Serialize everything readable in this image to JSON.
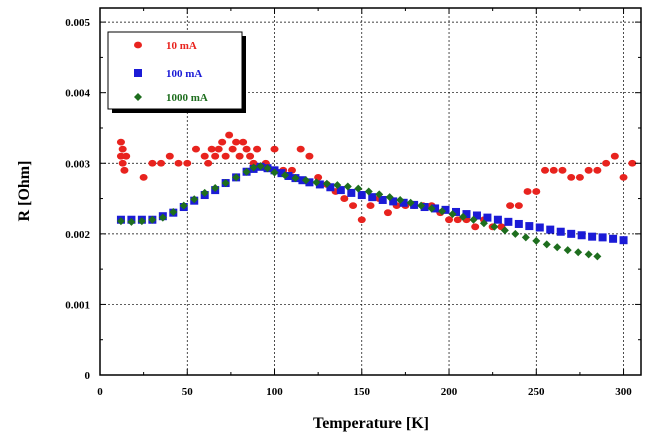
{
  "chart_data": {
    "type": "scatter",
    "xlabel": "Temperature [K]",
    "ylabel": "R [Ohm]",
    "xlim": [
      0,
      310
    ],
    "ylim": [
      0,
      0.0052
    ],
    "x_ticks": [
      0,
      50,
      100,
      150,
      200,
      250,
      300
    ],
    "y_ticks": [
      0,
      0.001,
      0.002,
      0.003,
      0.004,
      0.005
    ],
    "x_tick_labels": [
      "0",
      "50",
      "100",
      "150",
      "200",
      "250",
      "300"
    ],
    "y_tick_labels": [
      "0",
      "0.001",
      "0.002",
      "0.003",
      "0.004",
      "0.005"
    ],
    "grid": "dotted",
    "legend_position": "top-left",
    "series": [
      {
        "name": "10 mA",
        "color": "#e8231e",
        "marker": "circle",
        "x": [
          12,
          12,
          13,
          13,
          14,
          15,
          25,
          30,
          35,
          40,
          45,
          50,
          55,
          60,
          62,
          64,
          66,
          68,
          70,
          72,
          74,
          76,
          78,
          80,
          82,
          84,
          86,
          88,
          90,
          95,
          100,
          105,
          110,
          115,
          120,
          125,
          130,
          135,
          140,
          145,
          150,
          155,
          160,
          165,
          170,
          175,
          180,
          185,
          190,
          195,
          200,
          205,
          210,
          215,
          220,
          225,
          230,
          235,
          240,
          245,
          250,
          255,
          260,
          265,
          270,
          275,
          280,
          285,
          290,
          295,
          300,
          305
        ],
        "y": [
          0.0033,
          0.0031,
          0.003,
          0.0032,
          0.0029,
          0.0031,
          0.0028,
          0.003,
          0.003,
          0.0031,
          0.003,
          0.003,
          0.0032,
          0.0031,
          0.003,
          0.0032,
          0.0031,
          0.0032,
          0.0033,
          0.0031,
          0.0034,
          0.0032,
          0.0033,
          0.0031,
          0.0033,
          0.0032,
          0.0031,
          0.003,
          0.0032,
          0.003,
          0.0032,
          0.0029,
          0.0029,
          0.0032,
          0.0031,
          0.0028,
          0.0027,
          0.0026,
          0.0025,
          0.0024,
          0.0022,
          0.0024,
          0.0025,
          0.0023,
          0.0024,
          0.0024,
          0.0024,
          0.0024,
          0.0024,
          0.0023,
          0.0022,
          0.0022,
          0.0022,
          0.0021,
          0.0022,
          0.0021,
          0.0021,
          0.0024,
          0.0024,
          0.0026,
          0.0026,
          0.0029,
          0.0029,
          0.0029,
          0.0028,
          0.0028,
          0.0029,
          0.0029,
          0.003,
          0.0031,
          0.0028,
          0.003
        ]
      },
      {
        "name": "100 mA",
        "color": "#1b1bd6",
        "marker": "square",
        "x": [
          12,
          18,
          24,
          30,
          36,
          42,
          48,
          54,
          60,
          66,
          72,
          78,
          84,
          88,
          92,
          96,
          100,
          104,
          108,
          112,
          116,
          120,
          126,
          132,
          138,
          144,
          150,
          156,
          162,
          168,
          174,
          180,
          186,
          192,
          198,
          204,
          210,
          216,
          222,
          228,
          234,
          240,
          246,
          252,
          258,
          264,
          270,
          276,
          282,
          288,
          294,
          300
        ],
        "y": [
          0.0022,
          0.0022,
          0.0022,
          0.0022,
          0.00225,
          0.0023,
          0.00238,
          0.00247,
          0.00255,
          0.00262,
          0.00272,
          0.0028,
          0.00288,
          0.00292,
          0.00295,
          0.00293,
          0.0029,
          0.00286,
          0.00282,
          0.00279,
          0.00276,
          0.00273,
          0.0027,
          0.00266,
          0.00262,
          0.00258,
          0.00255,
          0.00252,
          0.00248,
          0.00246,
          0.00244,
          0.00241,
          0.00238,
          0.00236,
          0.00234,
          0.00231,
          0.00228,
          0.00226,
          0.00223,
          0.0022,
          0.00217,
          0.00214,
          0.00211,
          0.00209,
          0.00206,
          0.00203,
          0.002,
          0.00198,
          0.00196,
          0.00195,
          0.00193,
          0.00191
        ]
      },
      {
        "name": "1000 mA",
        "color": "#1e6e1e",
        "marker": "diamond",
        "x": [
          12,
          18,
          24,
          30,
          36,
          42,
          48,
          54,
          60,
          66,
          72,
          78,
          84,
          88,
          92,
          96,
          100,
          106,
          112,
          118,
          124,
          130,
          136,
          142,
          148,
          154,
          160,
          166,
          172,
          178,
          184,
          190,
          196,
          202,
          208,
          214,
          220,
          226,
          232,
          238,
          244,
          250,
          256,
          262,
          268,
          274,
          280,
          285
        ],
        "y": [
          0.00218,
          0.00217,
          0.00218,
          0.0022,
          0.00223,
          0.00231,
          0.0024,
          0.00249,
          0.00258,
          0.00265,
          0.00272,
          0.0028,
          0.00288,
          0.00294,
          0.00296,
          0.00293,
          0.00287,
          0.00283,
          0.00279,
          0.00276,
          0.00273,
          0.00271,
          0.00269,
          0.00267,
          0.00264,
          0.0026,
          0.00256,
          0.00252,
          0.00248,
          0.00244,
          0.0024,
          0.00236,
          0.00232,
          0.00228,
          0.00224,
          0.0022,
          0.00215,
          0.0021,
          0.00205,
          0.002,
          0.00195,
          0.0019,
          0.00185,
          0.00181,
          0.00177,
          0.00174,
          0.00171,
          0.00168
        ]
      }
    ]
  }
}
